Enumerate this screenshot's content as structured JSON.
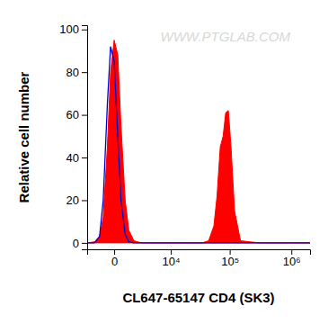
{
  "chart_data": {
    "type": "line",
    "x_label": "CL647-65147 CD4 (SK3)",
    "y_label": "Relative cell number",
    "annotations": [
      "WWW.PTGLAB.COM"
    ],
    "log": "x",
    "xlim": [
      -2400,
      2000000
    ],
    "xticks": [
      0,
      {
        "value": 10000,
        "label": "10⁴"
      },
      {
        "value": 100000,
        "label": "10⁵"
      },
      {
        "value": 1000000,
        "label": "10⁶"
      }
    ],
    "ylim": [
      -3,
      102
    ],
    "yticks": [
      0,
      20,
      40,
      60,
      80,
      100
    ],
    "x": [
      -2400,
      -1500,
      -1000,
      -700,
      -400,
      -200,
      0,
      200,
      400,
      700,
      1000,
      1500,
      2400,
      4000,
      7000,
      10000,
      20000,
      35000,
      45000,
      55000,
      62000,
      70000,
      78000,
      86000,
      95000,
      105000,
      120000,
      150000,
      300000,
      1000000,
      2000000
    ],
    "series": [
      {
        "type": "area",
        "color": "#ff0000",
        "values": [
          0,
          0.5,
          3,
          12,
          45,
          80,
          95,
          88,
          55,
          20,
          6,
          1,
          0,
          0,
          0,
          0,
          0,
          0,
          1,
          8,
          22,
          45,
          50,
          61,
          62,
          45,
          15,
          1,
          0,
          0,
          0
        ]
      },
      {
        "type": "line",
        "color": "#0000cc",
        "values": [
          0,
          0,
          3,
          20,
          65,
          92,
          85,
          50,
          20,
          4,
          0.5,
          0,
          0,
          0,
          0,
          0,
          0,
          0,
          0,
          0,
          0,
          0,
          0,
          0,
          0,
          0,
          0,
          0,
          0,
          0,
          0
        ]
      }
    ]
  }
}
